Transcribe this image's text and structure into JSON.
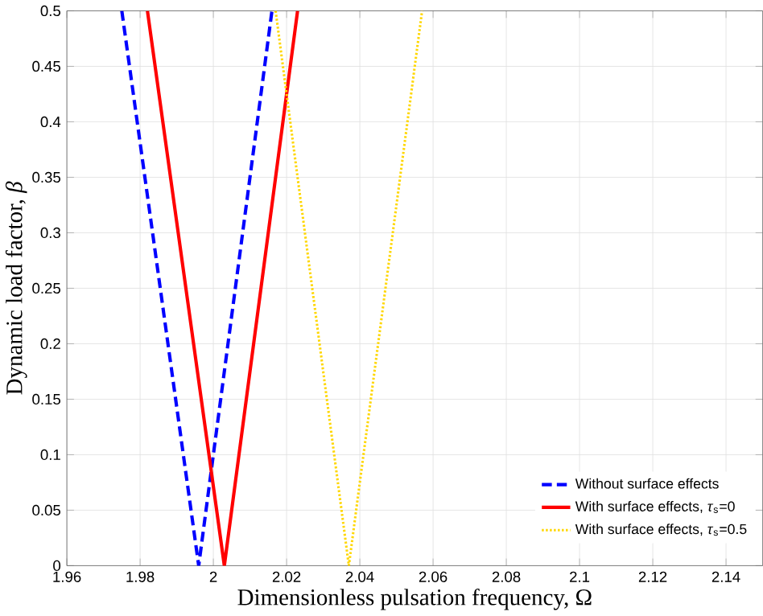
{
  "chart_data": {
    "type": "line",
    "xlabel": "Dimensionless pulsation frequency, Ω",
    "ylabel": "Dynamic load factor, *β*",
    "xlim": [
      1.96,
      2.15
    ],
    "ylim": [
      0,
      0.5
    ],
    "xticks": [
      1.96,
      1.98,
      {
        "value": 2,
        "label": "2"
      },
      2.02,
      2.04,
      2.06,
      2.08,
      {
        "value": 2.1,
        "label": "2.1"
      },
      2.12,
      2.14
    ],
    "yticks": [
      {
        "value": 0,
        "label": "0"
      },
      0.05,
      {
        "value": 0.1,
        "label": "0.1"
      },
      0.15,
      {
        "value": 0.2,
        "label": "0.2"
      },
      0.25,
      {
        "value": 0.3,
        "label": "0.3"
      },
      0.35,
      {
        "value": 0.4,
        "label": "0.4"
      },
      0.45,
      {
        "value": 0.5,
        "label": "0.5"
      }
    ],
    "grid": true,
    "legend": "bottom right",
    "series": [
      {
        "name": "Without surface effects",
        "color": "#0000ff",
        "line_style": "dashed",
        "x": [
          1.975,
          1.996,
          2.016
        ],
        "values": [
          0.5,
          0,
          0.5
        ]
      },
      {
        "name": "With surface effects, *τ*$_{s}$=0",
        "color": "#ff0000",
        "line_style": "solid",
        "x": [
          1.982,
          2.003,
          2.023
        ],
        "values": [
          0.5,
          0,
          0.5
        ]
      },
      {
        "name": "With surface effects, *τ*$_{s}$=0.5",
        "color": "#ffd700",
        "line_style": "dotted",
        "x": [
          2.017,
          2.037,
          2.057
        ],
        "values": [
          0.5,
          0,
          0.5
        ]
      }
    ]
  }
}
